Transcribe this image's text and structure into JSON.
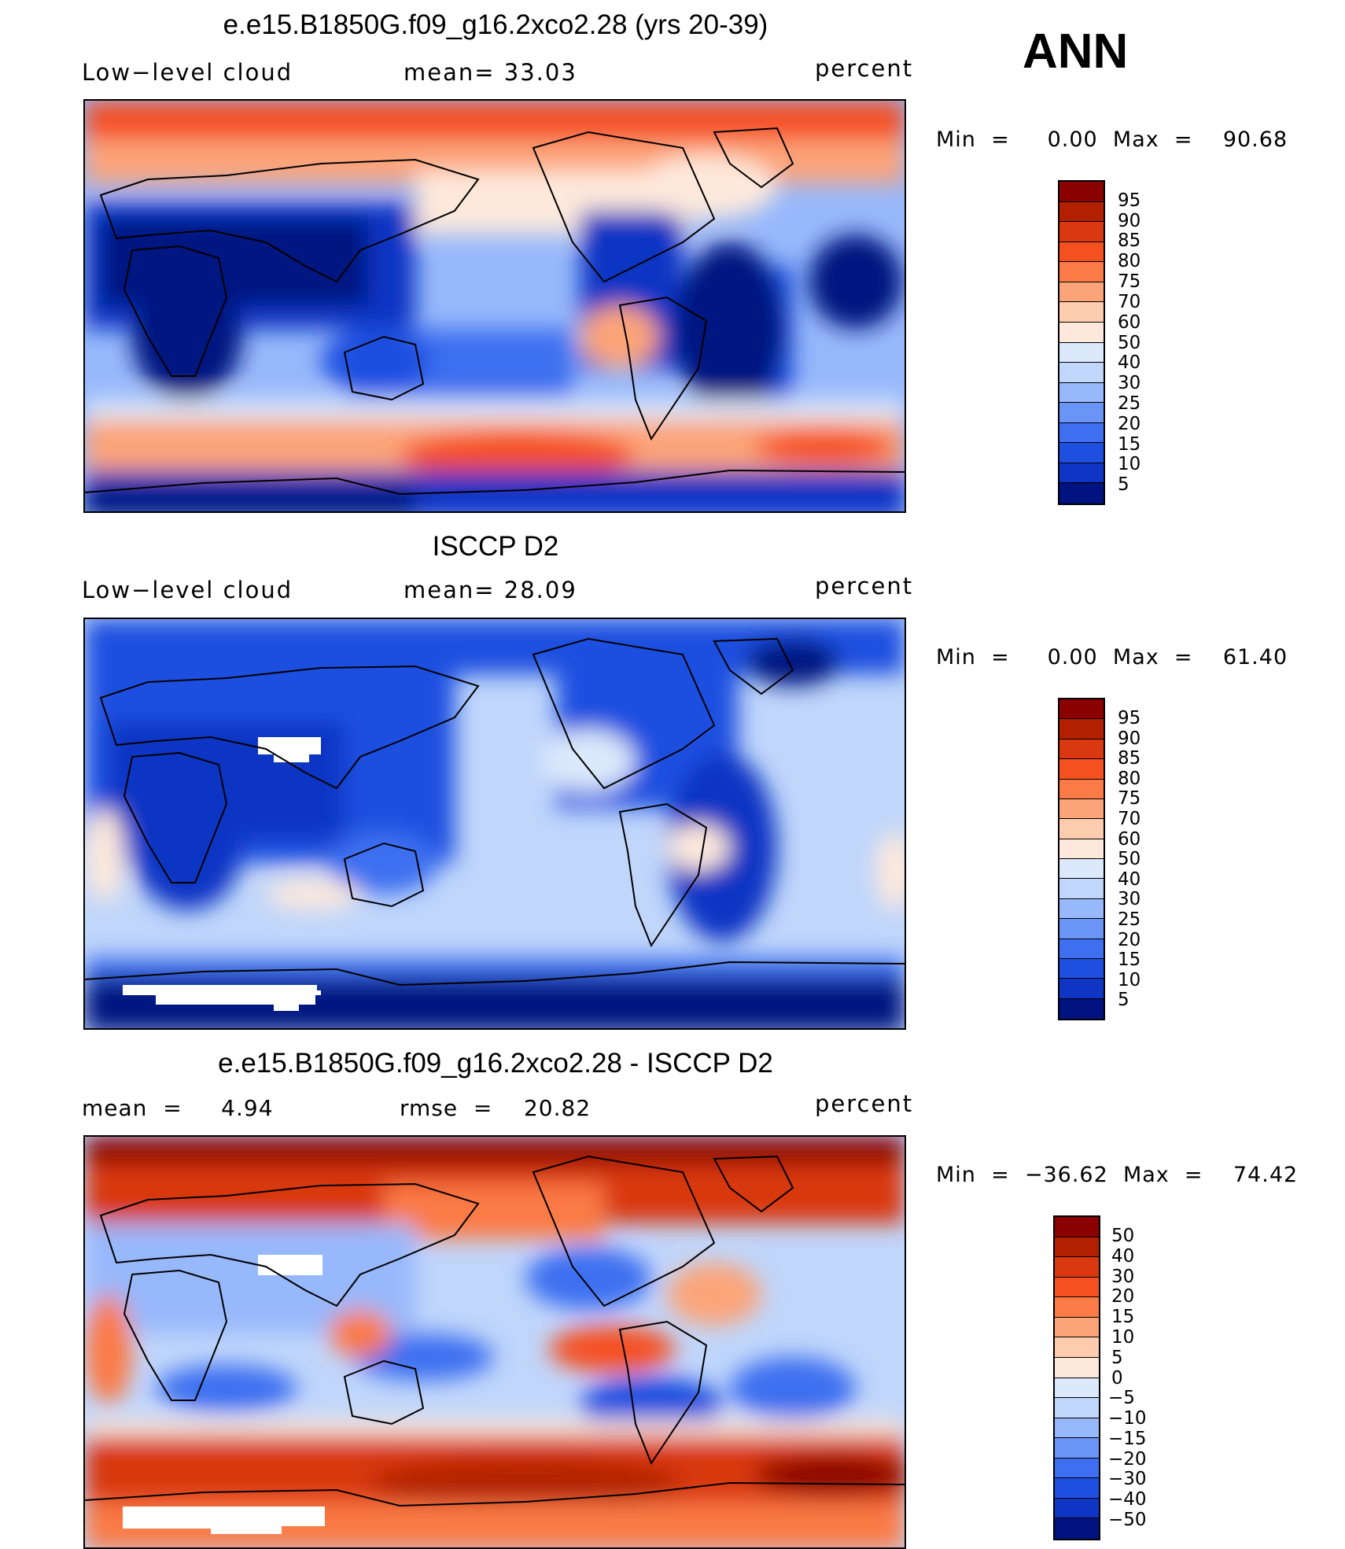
{
  "season": "ANN",
  "panels": [
    {
      "title": "e.e15.B1850G.f09_g16.2xco2.28 (yrs 20-39)",
      "left_label": "Low−level  cloud",
      "mid_label": "mean=   33.03",
      "right_label": "percent",
      "minmax": "Min  =     0.00  Max  =    90.68",
      "colorbar": {
        "labels": [
          "95",
          "90",
          "85",
          "80",
          "75",
          "70",
          "60",
          "50",
          "40",
          "30",
          "25",
          "20",
          "15",
          "10",
          "5"
        ],
        "colors": [
          "#8b0000",
          "#b22000",
          "#d93810",
          "#f55020",
          "#fb7a45",
          "#fca479",
          "#fdcbae",
          "#fde9dc",
          "#dbe9fb",
          "#c0d6fb",
          "#97b8fb",
          "#6a95f6",
          "#3e6ff0",
          "#1f4fe0",
          "#0f35c4",
          "#001380"
        ]
      }
    },
    {
      "title": "ISCCP D2",
      "left_label": "Low−level  cloud",
      "mid_label": "mean=   28.09",
      "right_label": "percent",
      "minmax": "Min  =     0.00  Max  =    61.40",
      "colorbar": {
        "labels": [
          "95",
          "90",
          "85",
          "80",
          "75",
          "70",
          "60",
          "50",
          "40",
          "30",
          "25",
          "20",
          "15",
          "10",
          "5"
        ],
        "colors": [
          "#8b0000",
          "#b22000",
          "#d93810",
          "#f55020",
          "#fb7a45",
          "#fca479",
          "#fdcbae",
          "#fde9dc",
          "#dbe9fb",
          "#c0d6fb",
          "#97b8fb",
          "#6a95f6",
          "#3e6ff0",
          "#1f4fe0",
          "#0f35c4",
          "#001380"
        ]
      }
    },
    {
      "title": "e.e15.B1850G.f09_g16.2xco2.28 - ISCCP D2",
      "left_label": "mean  =     4.94",
      "mid_label": "rmse  =    20.82",
      "right_label": "percent",
      "minmax": "Min  =  −36.62  Max  =    74.42",
      "colorbar": {
        "labels": [
          "50",
          "40",
          "30",
          "20",
          "15",
          "10",
          "5",
          "0",
          "−5",
          "−10",
          "−15",
          "−20",
          "−30",
          "−40",
          "−50"
        ],
        "colors": [
          "#8b0000",
          "#b22000",
          "#d93810",
          "#f55020",
          "#fb7a45",
          "#fca479",
          "#fdcbae",
          "#fde9dc",
          "#dbe9fb",
          "#c0d6fb",
          "#97b8fb",
          "#6a95f6",
          "#3e6ff0",
          "#1f4fe0",
          "#0f35c4",
          "#001380"
        ]
      }
    }
  ]
}
